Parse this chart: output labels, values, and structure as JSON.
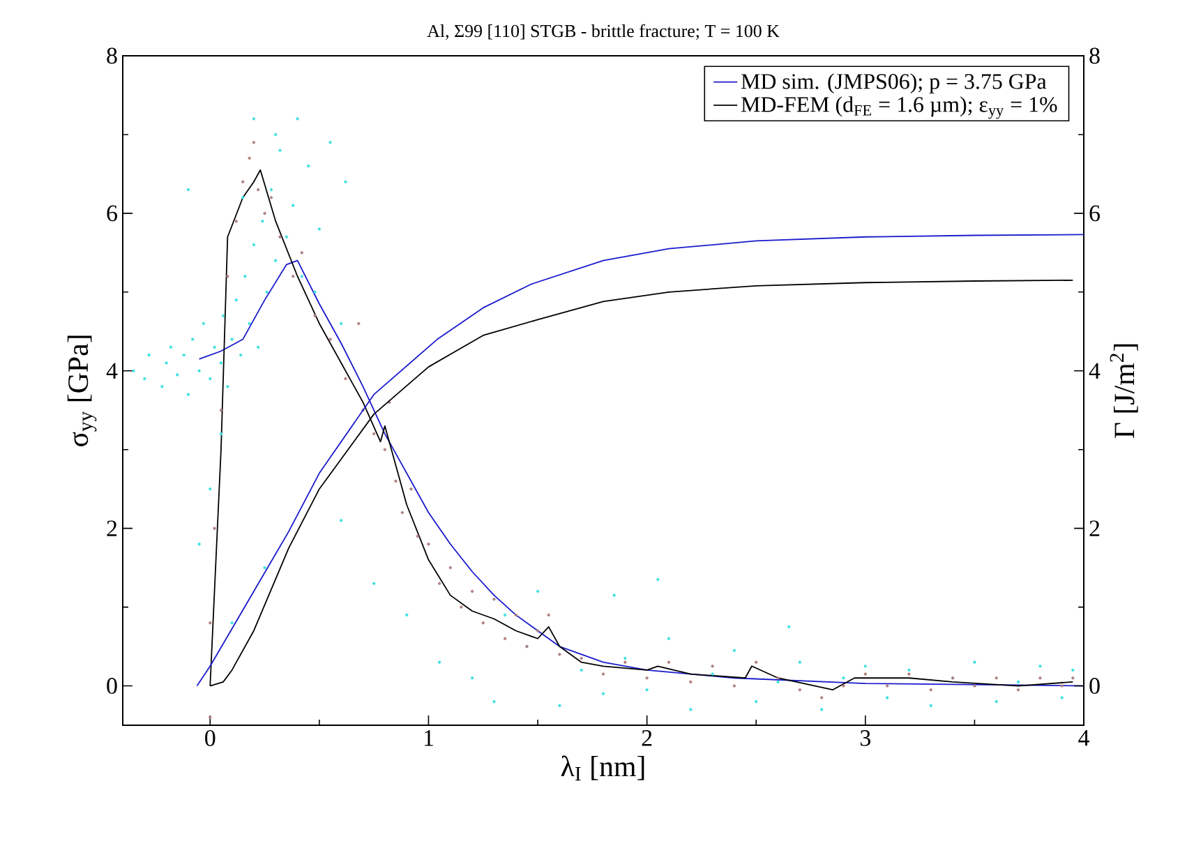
{
  "chart_data": {
    "type": "line",
    "title": "Al, Σ99 [110] STGB - brittle fracture; T = 100 K",
    "xlabel": "λ$_{I}$ [nm]",
    "ylabel": "σ$_{yy}$ [GPa]",
    "y2label": "Γ [J/m$^{2}$]",
    "xlim": [
      -0.4,
      4
    ],
    "xticks": [
      0,
      {
        "value": 0.5,
        "label": null
      },
      1,
      {
        "value": 1.5,
        "label": null
      },
      2,
      {
        "value": 2.5,
        "label": null
      },
      3,
      {
        "value": 3.5,
        "label": null
      },
      4
    ],
    "ylim": [
      -0.5,
      8
    ],
    "yticks": [
      0,
      {
        "value": 1,
        "label": null
      },
      2,
      {
        "value": 3,
        "label": null
      },
      4,
      {
        "value": 5,
        "label": null
      },
      6,
      {
        "value": 7,
        "label": null
      },
      8
    ],
    "y2lim": [
      -0.5,
      8
    ],
    "y2ticks": [
      0,
      {
        "value": 1,
        "label": null
      },
      2,
      {
        "value": 3,
        "label": null
      },
      4,
      {
        "value": 5,
        "label": null
      },
      6,
      {
        "value": 7,
        "label": null
      },
      8
    ],
    "grid": false,
    "legend": "top right",
    "marker": "none",
    "line_style": "solid",
    "series": [
      {
        "type": "scatter",
        "marker": "circle",
        "color": "#40e0e0",
        "x": [
          -0.35,
          -0.3,
          -0.28,
          -0.22,
          -0.2,
          -0.18,
          -0.15,
          -0.12,
          -0.1,
          -0.08,
          -0.05,
          -0.03,
          0.0,
          0.02,
          0.05,
          0.06,
          0.08,
          0.1,
          0.12,
          0.14,
          0.16,
          0.18,
          0.2,
          0.22,
          0.24,
          0.26,
          0.28,
          0.3,
          0.32,
          0.35,
          0.38,
          0.4,
          0.42,
          0.45,
          0.48,
          0.5,
          0.55,
          0.6,
          0.62,
          0.3,
          0.2,
          0.15,
          -0.1,
          0.05,
          0.0,
          -0.05,
          0.25,
          0.1,
          0.6,
          0.75,
          0.9,
          1.05,
          1.2,
          1.3,
          1.45,
          1.6,
          1.7,
          1.8,
          1.9,
          2.0,
          2.1,
          2.2,
          2.3,
          2.4,
          2.5,
          2.6,
          2.7,
          2.8,
          2.9,
          3.0,
          3.1,
          3.2,
          3.3,
          3.4,
          3.5,
          3.6,
          3.7,
          3.8,
          3.9,
          3.95,
          1.85,
          1.5,
          2.05,
          2.65,
          1.35
        ],
        "values": [
          4.0,
          3.9,
          4.2,
          3.8,
          4.1,
          4.3,
          3.95,
          4.2,
          3.7,
          4.4,
          4.0,
          4.6,
          3.9,
          4.3,
          4.1,
          4.7,
          3.8,
          4.4,
          4.9,
          4.2,
          5.2,
          4.6,
          5.6,
          4.3,
          5.9,
          5.0,
          6.3,
          5.4,
          6.8,
          5.7,
          6.1,
          7.2,
          5.2,
          6.6,
          5.0,
          5.8,
          6.9,
          4.6,
          6.4,
          7.0,
          7.2,
          6.2,
          6.3,
          3.2,
          2.5,
          1.8,
          1.5,
          0.8,
          2.1,
          1.3,
          0.9,
          0.3,
          0.1,
          -0.2,
          0.5,
          -0.25,
          0.2,
          -0.1,
          0.35,
          -0.05,
          0.6,
          -0.3,
          0.15,
          0.45,
          -0.2,
          0.05,
          0.3,
          -0.3,
          0.1,
          0.25,
          -0.15,
          0.2,
          -0.25,
          0.1,
          0.3,
          -0.2,
          0.05,
          0.25,
          -0.15,
          0.2,
          1.15,
          1.2,
          1.35,
          0.75,
          0.9
        ]
      },
      {
        "type": "scatter",
        "marker": "circle",
        "color": "#b08080",
        "x": [
          0.0,
          0.0,
          0.02,
          0.05,
          0.08,
          0.12,
          0.15,
          0.18,
          0.2,
          0.22,
          0.25,
          0.28,
          0.32,
          0.38,
          0.42,
          0.48,
          0.55,
          0.62,
          0.68,
          0.7,
          0.75,
          0.8,
          0.82,
          0.85,
          0.88,
          0.92,
          0.95,
          1.0,
          1.05,
          1.1,
          1.15,
          1.2,
          1.25,
          1.3,
          1.35,
          1.4,
          1.45,
          1.5,
          1.55,
          1.6,
          1.7,
          1.8,
          1.9,
          2.0,
          2.1,
          2.2,
          2.3,
          2.4,
          2.5,
          2.6,
          2.7,
          2.8,
          2.9,
          3.0,
          3.1,
          3.2,
          3.3,
          3.4,
          3.5,
          3.6,
          3.7,
          3.8,
          3.9,
          3.95
        ],
        "values": [
          -0.4,
          0.8,
          2.0,
          3.5,
          5.2,
          5.9,
          6.4,
          6.7,
          6.9,
          6.3,
          6.0,
          6.2,
          5.7,
          5.2,
          5.5,
          4.7,
          4.4,
          3.9,
          4.6,
          3.5,
          3.2,
          3.0,
          3.6,
          2.6,
          2.2,
          2.5,
          1.9,
          1.8,
          1.3,
          1.5,
          1.0,
          1.2,
          0.8,
          1.1,
          0.6,
          0.9,
          0.5,
          0.7,
          0.9,
          0.4,
          0.35,
          0.15,
          0.3,
          0.1,
          0.3,
          0.05,
          0.25,
          0.0,
          0.3,
          0.1,
          -0.05,
          -0.15,
          0.0,
          0.15,
          0.0,
          0.15,
          -0.05,
          0.1,
          0.0,
          0.1,
          -0.05,
          0.1,
          0.0,
          0.1
        ]
      },
      {
        "name": "MD sim. (JMPS06); p = 3.75 GPa",
        "color": "#1a1acc",
        "x": [
          -0.05,
          0.05,
          0.15,
          0.25,
          0.35,
          0.4,
          0.5,
          0.6,
          0.7,
          0.8,
          0.9,
          1.0,
          1.1,
          1.2,
          1.3,
          1.4,
          1.5,
          1.6,
          1.8,
          2.0,
          2.4,
          3.0,
          4.0
        ],
        "values": [
          4.15,
          4.25,
          4.4,
          4.9,
          5.35,
          5.4,
          4.85,
          4.35,
          3.8,
          3.2,
          2.7,
          2.2,
          1.8,
          1.45,
          1.15,
          0.9,
          0.7,
          0.5,
          0.3,
          0.2,
          0.1,
          0.03,
          0.0
        ]
      },
      {
        "name": "MD-FEM (d$_{FE}$ = 1.6 µm); ε$_{yy}$ = 1%",
        "color": "#000000",
        "x": [
          0.0,
          0.05,
          0.08,
          0.15,
          0.2,
          0.23,
          0.3,
          0.4,
          0.5,
          0.6,
          0.7,
          0.78,
          0.8,
          0.85,
          0.9,
          1.0,
          1.1,
          1.2,
          1.3,
          1.4,
          1.5,
          1.55,
          1.6,
          1.7,
          1.8,
          2.0,
          2.05,
          2.2,
          2.45,
          2.48,
          2.6,
          2.85,
          2.95,
          3.2,
          3.4,
          3.7,
          3.95
        ],
        "values": [
          0.0,
          3.0,
          5.7,
          6.2,
          6.4,
          6.55,
          5.9,
          5.2,
          4.6,
          4.1,
          3.6,
          3.1,
          3.3,
          2.8,
          2.3,
          1.6,
          1.15,
          0.95,
          0.85,
          0.7,
          0.6,
          0.75,
          0.5,
          0.3,
          0.25,
          0.2,
          0.25,
          0.15,
          0.1,
          0.25,
          0.1,
          -0.05,
          0.1,
          0.1,
          0.05,
          0.0,
          0.05
        ]
      },
      {
        "axis": "y2",
        "color": "#1a1acc",
        "x": [
          -0.06,
          0.0,
          0.2,
          0.36,
          0.5,
          0.75,
          1.04,
          1.25,
          1.47,
          1.8,
          2.1,
          2.5,
          3.0,
          3.5,
          4.0
        ],
        "values": [
          0.0,
          0.25,
          1.2,
          1.96,
          2.7,
          3.7,
          4.4,
          4.8,
          5.1,
          5.4,
          5.55,
          5.65,
          5.7,
          5.72,
          5.73
        ]
      },
      {
        "axis": "y2",
        "color": "#000000",
        "x": [
          0.0,
          0.06,
          0.1,
          0.2,
          0.36,
          0.5,
          0.75,
          1.0,
          1.25,
          1.5,
          1.8,
          2.1,
          2.5,
          3.0,
          3.5,
          3.95
        ],
        "values": [
          0.0,
          0.05,
          0.2,
          0.7,
          1.75,
          2.5,
          3.45,
          4.05,
          4.45,
          4.65,
          4.88,
          5.0,
          5.08,
          5.12,
          5.14,
          5.15
        ]
      }
    ]
  }
}
